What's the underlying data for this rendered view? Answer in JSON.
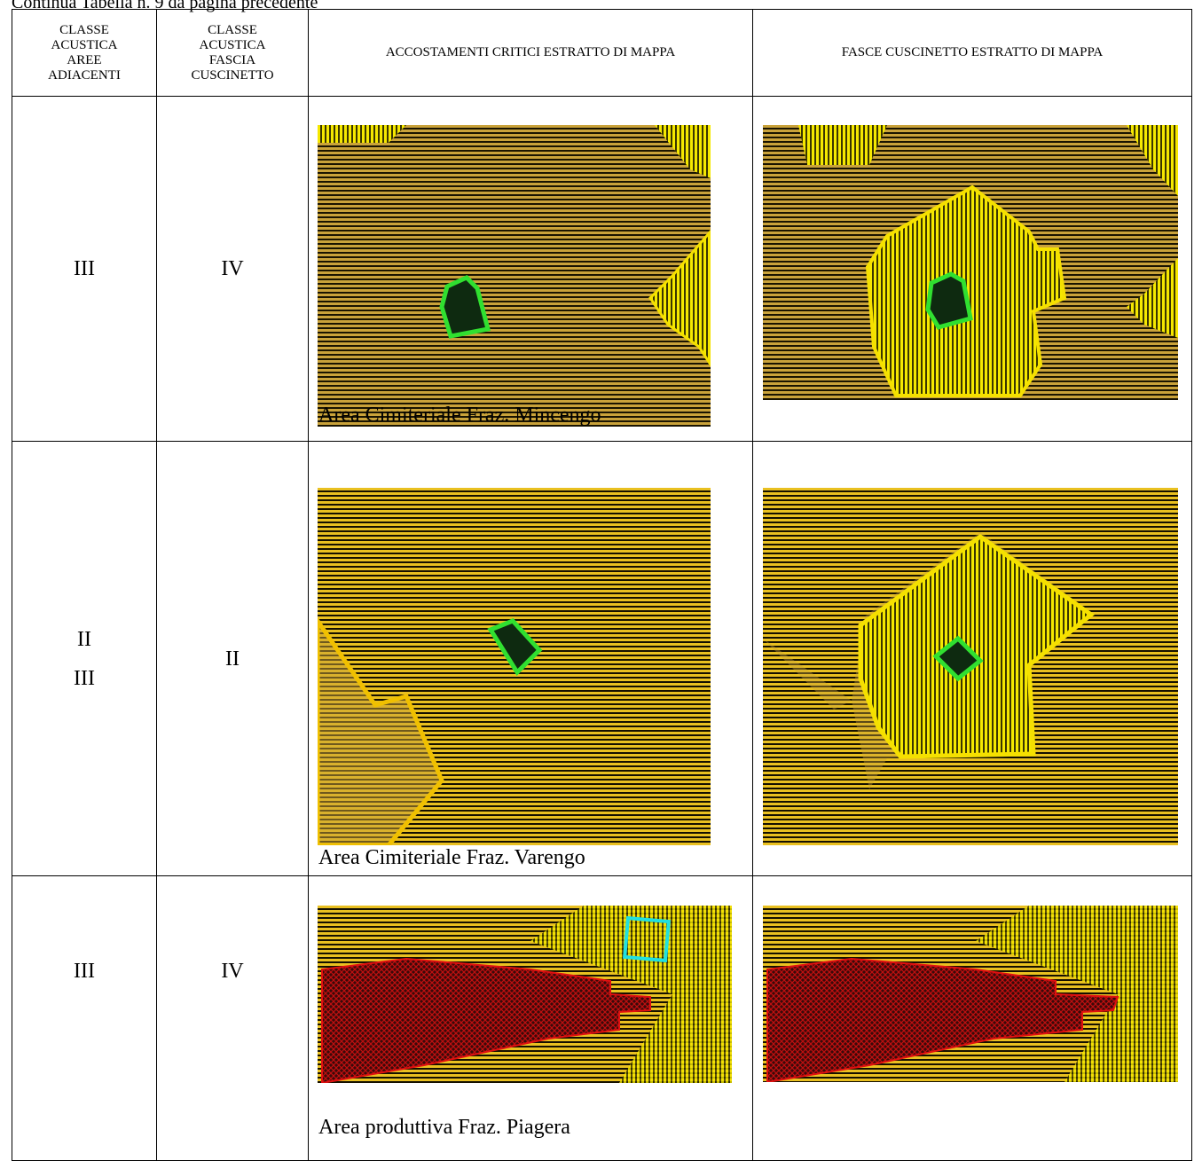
{
  "header": {
    "continuation": "Continua Tabella n. 9 da pagina precedente"
  },
  "table": {
    "columns": [
      "CLASSE ACUSTICA AREE ADIACENTI",
      "CLASSE ACUSTICA FASCIA CUSCINETTO",
      "ACCOSTAMENTI CRITICI ESTRATTO DI MAPPA",
      "FASCE CUSCINETTO ESTRATTO DI MAPPA"
    ],
    "rows": [
      {
        "adjacent": [
          "III"
        ],
        "buffer": "IV",
        "caption": "Area Cimiteriale Fraz. Mincengo"
      },
      {
        "adjacent": [
          "II",
          "III"
        ],
        "buffer": "II",
        "caption": "Area Cimiteriale Fraz. Varengo"
      },
      {
        "adjacent": [
          "III"
        ],
        "buffer": "IV",
        "caption": "Area produttiva Fraz. Piagera"
      }
    ]
  }
}
